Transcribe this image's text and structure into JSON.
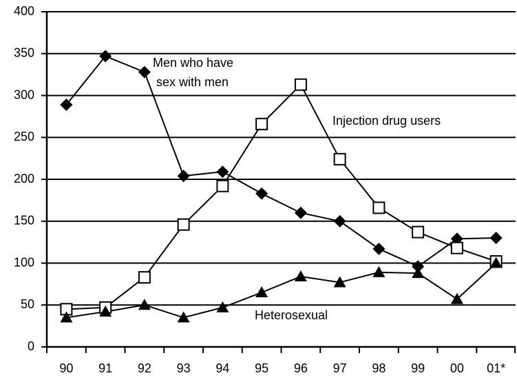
{
  "chart_data": {
    "type": "line",
    "categories": [
      "90",
      "91",
      "92",
      "93",
      "94",
      "95",
      "96",
      "97",
      "98",
      "99",
      "00",
      "01*"
    ],
    "series": [
      {
        "name": "Men who have sex with men",
        "color": "#000000",
        "marker": "diamond",
        "values": [
          289,
          347,
          328,
          204,
          209,
          183,
          160,
          150,
          117,
          96,
          129,
          130
        ]
      },
      {
        "name": "Injection drug users",
        "color": "#000000",
        "marker": "square",
        "values": [
          45,
          47,
          83,
          146,
          192,
          266,
          313,
          224,
          166,
          137,
          118,
          102
        ]
      },
      {
        "name": "Heterosexual",
        "color": "#000000",
        "marker": "triangle",
        "values": [
          35,
          42,
          50,
          35,
          47,
          65,
          84,
          77,
          89,
          88,
          57,
          100
        ]
      }
    ],
    "ylim": [
      0,
      400
    ],
    "yticks": [
      0,
      50,
      100,
      150,
      200,
      250,
      300,
      350,
      400
    ],
    "grid": true
  }
}
